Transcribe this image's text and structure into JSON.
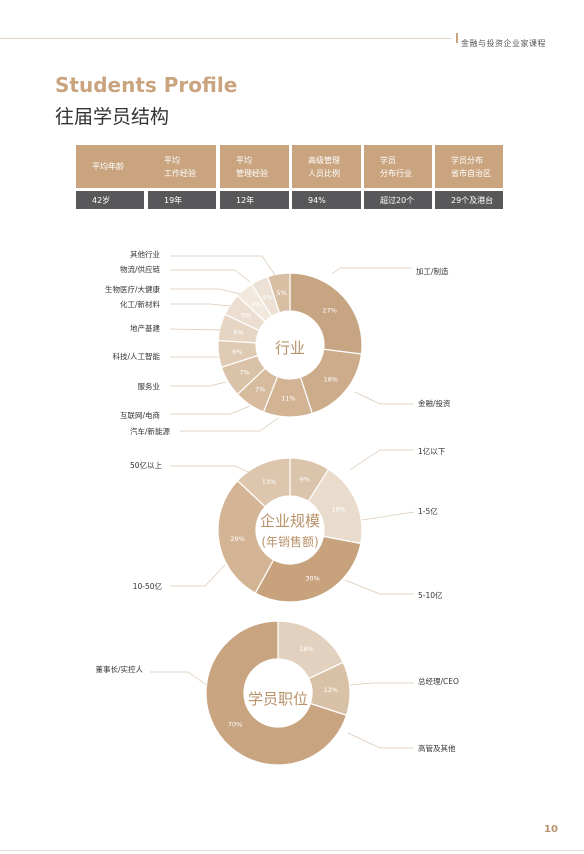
{
  "header": {
    "title": "金融与投资企业家课程"
  },
  "title_en": "Students Profile",
  "title_cn": "往届学员结构",
  "stats": [
    {
      "label_line1": "平均年龄",
      "label_line2": "",
      "value": "42岁"
    },
    {
      "label_line1": "平均",
      "label_line2": "工作经验",
      "value": "19年"
    },
    {
      "label_line1": "平均",
      "label_line2": "管理经验",
      "value": "12年"
    },
    {
      "label_line1": "高级管理",
      "label_line2": "人员比例",
      "value": "94%"
    },
    {
      "label_line1": "学员",
      "label_line2": "分布行业",
      "value": "超过20个"
    },
    {
      "label_line1": "学员分布",
      "label_line2": "省市自治区",
      "value": "29个及港台"
    }
  ],
  "chart_data": [
    {
      "type": "pie",
      "center_label": "行业",
      "slices": [
        {
          "label": "加工/制造",
          "value": 27,
          "pct_text": "27%",
          "color": "#c7a482"
        },
        {
          "label": "金融/投资",
          "value": 18,
          "pct_text": "18%",
          "color": "#cdac8b"
        },
        {
          "label": "汽车/新能源",
          "value": 11,
          "pct_text": "11%",
          "color": "#d2b393"
        },
        {
          "label": "互联网/电商",
          "value": 7,
          "pct_text": "7%",
          "color": "#d6bb9e"
        },
        {
          "label": "服务业",
          "value": 7,
          "pct_text": "7%",
          "color": "#dac2a8"
        },
        {
          "label": "科技/人工智能",
          "value": 6,
          "pct_text": "6%",
          "color": "#dfcab3"
        },
        {
          "label": "地产基建",
          "value": 6,
          "pct_text": "6%",
          "color": "#e6d5c3"
        },
        {
          "label": "化工/新材料",
          "value": 5,
          "pct_text": "5%",
          "color": "#ecdfd1"
        },
        {
          "label": "生物医疗/大健康",
          "value": 4,
          "pct_text": "4%",
          "color": "#f1e8de"
        },
        {
          "label": "物流/供应链",
          "value": 4,
          "pct_text": "4%",
          "color": "#ece1d4"
        },
        {
          "label": "其他行业",
          "value": 5,
          "pct_text": "5%",
          "color": "#d8bfa4"
        }
      ]
    },
    {
      "type": "pie",
      "center_label": "企业规模",
      "center_sublabel": "(年销售额)",
      "slices": [
        {
          "label": "1亿以下",
          "value": 9,
          "pct_text": "9%",
          "color": "#dac4ac"
        },
        {
          "label": "1-5亿",
          "value": 19,
          "pct_text": "19%",
          "color": "#e9dccd"
        },
        {
          "label": "5-10亿",
          "value": 30,
          "pct_text": "30%",
          "color": "#c7a27d"
        },
        {
          "label": "10-50亿",
          "value": 29,
          "pct_text": "29%",
          "color": "#d3b595"
        },
        {
          "label": "50亿以上",
          "value": 13,
          "pct_text": "13%",
          "color": "#ddc6ad"
        }
      ]
    },
    {
      "type": "pie",
      "center_label": "学员职位",
      "slices": [
        {
          "label": "总经理/CEO",
          "value": 18,
          "pct_text": "18%",
          "color": "#e3d1bf"
        },
        {
          "label": "高管及其他",
          "value": 12,
          "pct_text": "12%",
          "color": "#d9c1a7"
        },
        {
          "label": "董事长/实控人",
          "value": 70,
          "pct_text": "70%",
          "color": "#c8a481"
        }
      ]
    }
  ],
  "page_number": "10"
}
